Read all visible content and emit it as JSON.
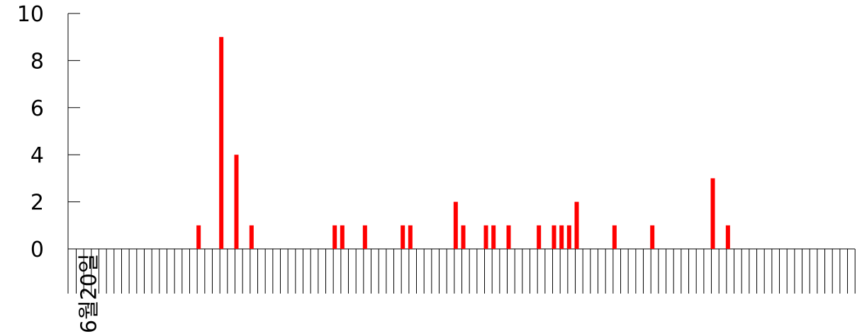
{
  "chart_data": {
    "type": "bar",
    "title": "",
    "xlabel": "",
    "ylabel": "",
    "ylim": [
      0,
      10
    ],
    "y_ticks": [
      0,
      2,
      4,
      6,
      8,
      10
    ],
    "y_tick_labels": [
      "0",
      "2",
      "4",
      "6",
      "8",
      "10"
    ],
    "x_label_text": "6월20일",
    "x_slot_count": 105,
    "x_label_slot": 0,
    "bar_color": "#ff0000",
    "grid": false,
    "bars": [
      {
        "slot": 16,
        "value": 1
      },
      {
        "slot": 19,
        "value": 9
      },
      {
        "slot": 21,
        "value": 4
      },
      {
        "slot": 23,
        "value": 1
      },
      {
        "slot": 34,
        "value": 1
      },
      {
        "slot": 35,
        "value": 1
      },
      {
        "slot": 38,
        "value": 1
      },
      {
        "slot": 43,
        "value": 1
      },
      {
        "slot": 44,
        "value": 1
      },
      {
        "slot": 50,
        "value": 2
      },
      {
        "slot": 51,
        "value": 1
      },
      {
        "slot": 54,
        "value": 1
      },
      {
        "slot": 55,
        "value": 1
      },
      {
        "slot": 57,
        "value": 1
      },
      {
        "slot": 61,
        "value": 1
      },
      {
        "slot": 63,
        "value": 1
      },
      {
        "slot": 64,
        "value": 1
      },
      {
        "slot": 65,
        "value": 1
      },
      {
        "slot": 66,
        "value": 2
      },
      {
        "slot": 71,
        "value": 1
      },
      {
        "slot": 76,
        "value": 1
      },
      {
        "slot": 84,
        "value": 3
      },
      {
        "slot": 86,
        "value": 1
      }
    ]
  }
}
